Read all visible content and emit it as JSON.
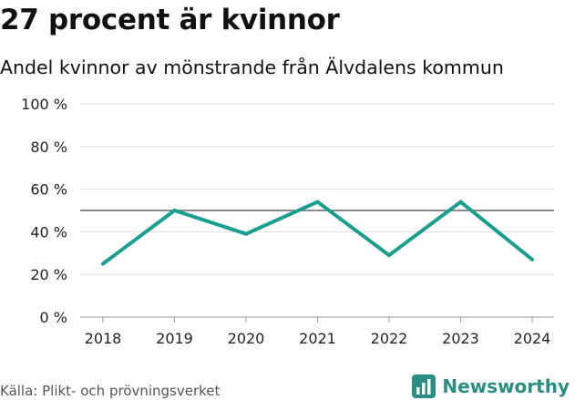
{
  "header": {
    "title": "27 procent är kvinnor",
    "subtitle": "Andel kvinnor av mönstrande från Älvdalens kommun"
  },
  "footer": {
    "source": "Källa: Plikt- och prövningsverket",
    "brand": "Newsworthy"
  },
  "colors": {
    "line": "#1a9e8e",
    "reference_line": "#666666",
    "grid": "#dddddd",
    "brand": "#2a8f82"
  },
  "icons": {
    "brand_logo": "bar-chart-logo-icon"
  },
  "chart_data": {
    "type": "line",
    "title": "27 procent är kvinnor",
    "subtitle": "Andel kvinnor av mönstrande från Älvdalens kommun",
    "xlabel": "",
    "ylabel": "",
    "categories": [
      "2018",
      "2019",
      "2020",
      "2021",
      "2022",
      "2023",
      "2024"
    ],
    "series": [
      {
        "name": "Andel kvinnor",
        "values": [
          25,
          50,
          39,
          54,
          29,
          54,
          27
        ]
      }
    ],
    "reference_line": 50,
    "ylim": [
      0,
      100
    ],
    "yticks": [
      0,
      20,
      40,
      60,
      80,
      100
    ],
    "ytick_labels": [
      "0 %",
      "20 %",
      "40 %",
      "60 %",
      "80 %",
      "100 %"
    ],
    "grid": true
  }
}
